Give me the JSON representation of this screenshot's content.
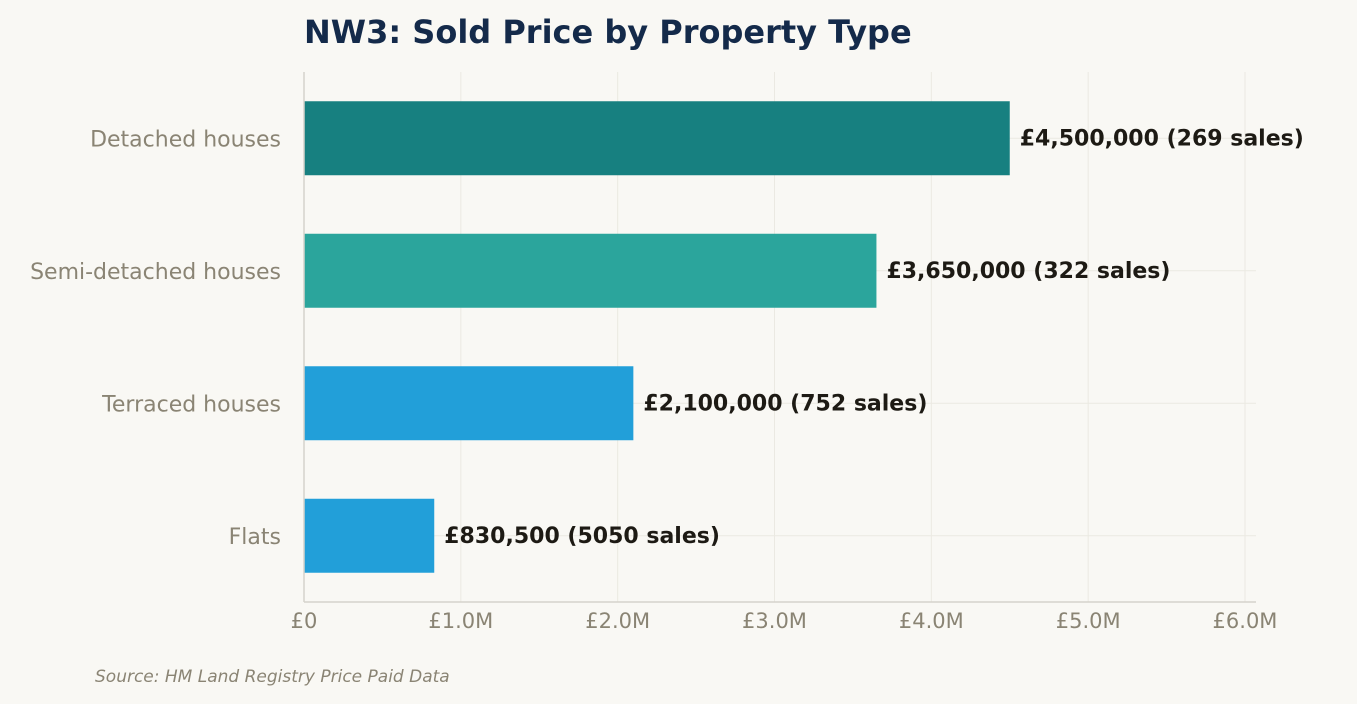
{
  "chart_data": {
    "type": "bar",
    "orientation": "horizontal",
    "title": "NW3: Sold Price by Property Type",
    "categories": [
      "Detached houses",
      "Semi-detached houses",
      "Terraced houses",
      "Flats"
    ],
    "values": [
      4500000,
      3650000,
      2100000,
      830500
    ],
    "sales": [
      269,
      322,
      752,
      5050
    ],
    "data_labels": [
      "£4,500,000  (269 sales)",
      "£3,650,000  (322 sales)",
      "£2,100,000  (752 sales)",
      "£830,500  (5050 sales)"
    ],
    "bar_colors": [
      "#178080",
      "#2ba59c",
      "#229fd9",
      "#229fd9"
    ],
    "xlim": [
      0,
      6000000
    ],
    "xticks": [
      0,
      1000000,
      2000000,
      3000000,
      4000000,
      5000000,
      6000000
    ],
    "xtick_labels": [
      "£0",
      "£1.0M",
      "£2.0M",
      "£3.0M",
      "£4.0M",
      "£5.0M",
      "£6.0M"
    ],
    "xlabel": "",
    "ylabel": "",
    "grid": true,
    "source": "Source: HM Land Registry Price Paid Data"
  }
}
